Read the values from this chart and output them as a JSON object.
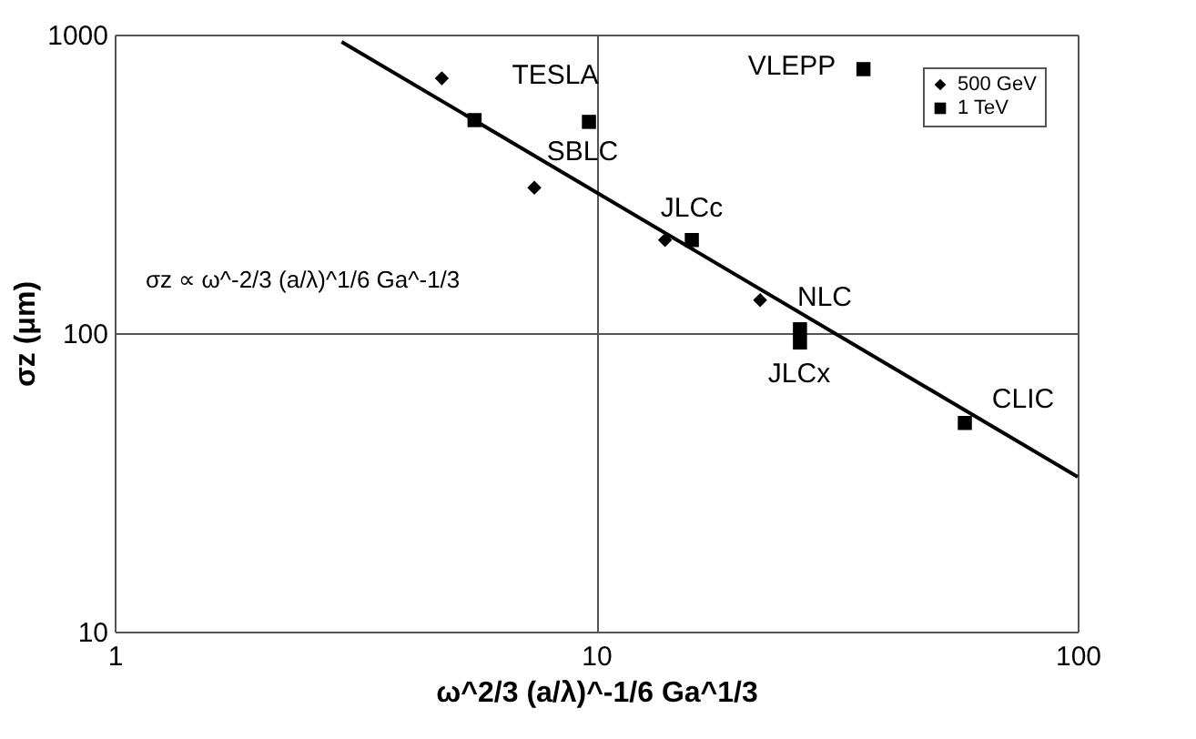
{
  "chart_data": {
    "type": "scatter",
    "xlabel": "ω^2/3 (a/λ)^-1/6 Ga^1/3",
    "ylabel": "σz (μm)",
    "log": "xy",
    "xlim": [
      1,
      100
    ],
    "ylim": [
      10,
      1000
    ],
    "xticks": [
      1,
      10,
      100
    ],
    "yticks": [
      10,
      100,
      {
        "value": 1000,
        "label": "1000"
      }
    ],
    "grid": true,
    "legend": "top right",
    "series": [
      {
        "name": "500 GeV",
        "color": "#000000",
        "marker": "diamond",
        "x": [
          4.78,
          7.44,
          13.9,
          21.9
        ],
        "values": [
          714,
          307,
          205,
          129
        ]
      },
      {
        "name": "1 TeV",
        "color": "#000000",
        "marker": "square",
        "x": [
          5.59,
          9.66,
          15.8,
          26.5,
          26.5,
          58.3,
          35.9
        ],
        "values": [
          517,
          510,
          205,
          103,
          93,
          50,
          766
        ]
      },
      {
        "type": "line",
        "color": "#000000",
        "marker": "none",
        "x": [
          2.96,
          100
        ],
        "values": [
          946,
          33
        ]
      }
    ],
    "annotations": [
      "TESLA",
      "SBLC",
      "JLCc",
      "NLC",
      "JLCx",
      "CLIC",
      "VLEPP",
      "σz ∝ ω^-2/3 (a/λ)^1/6 Ga^-1/3"
    ]
  }
}
